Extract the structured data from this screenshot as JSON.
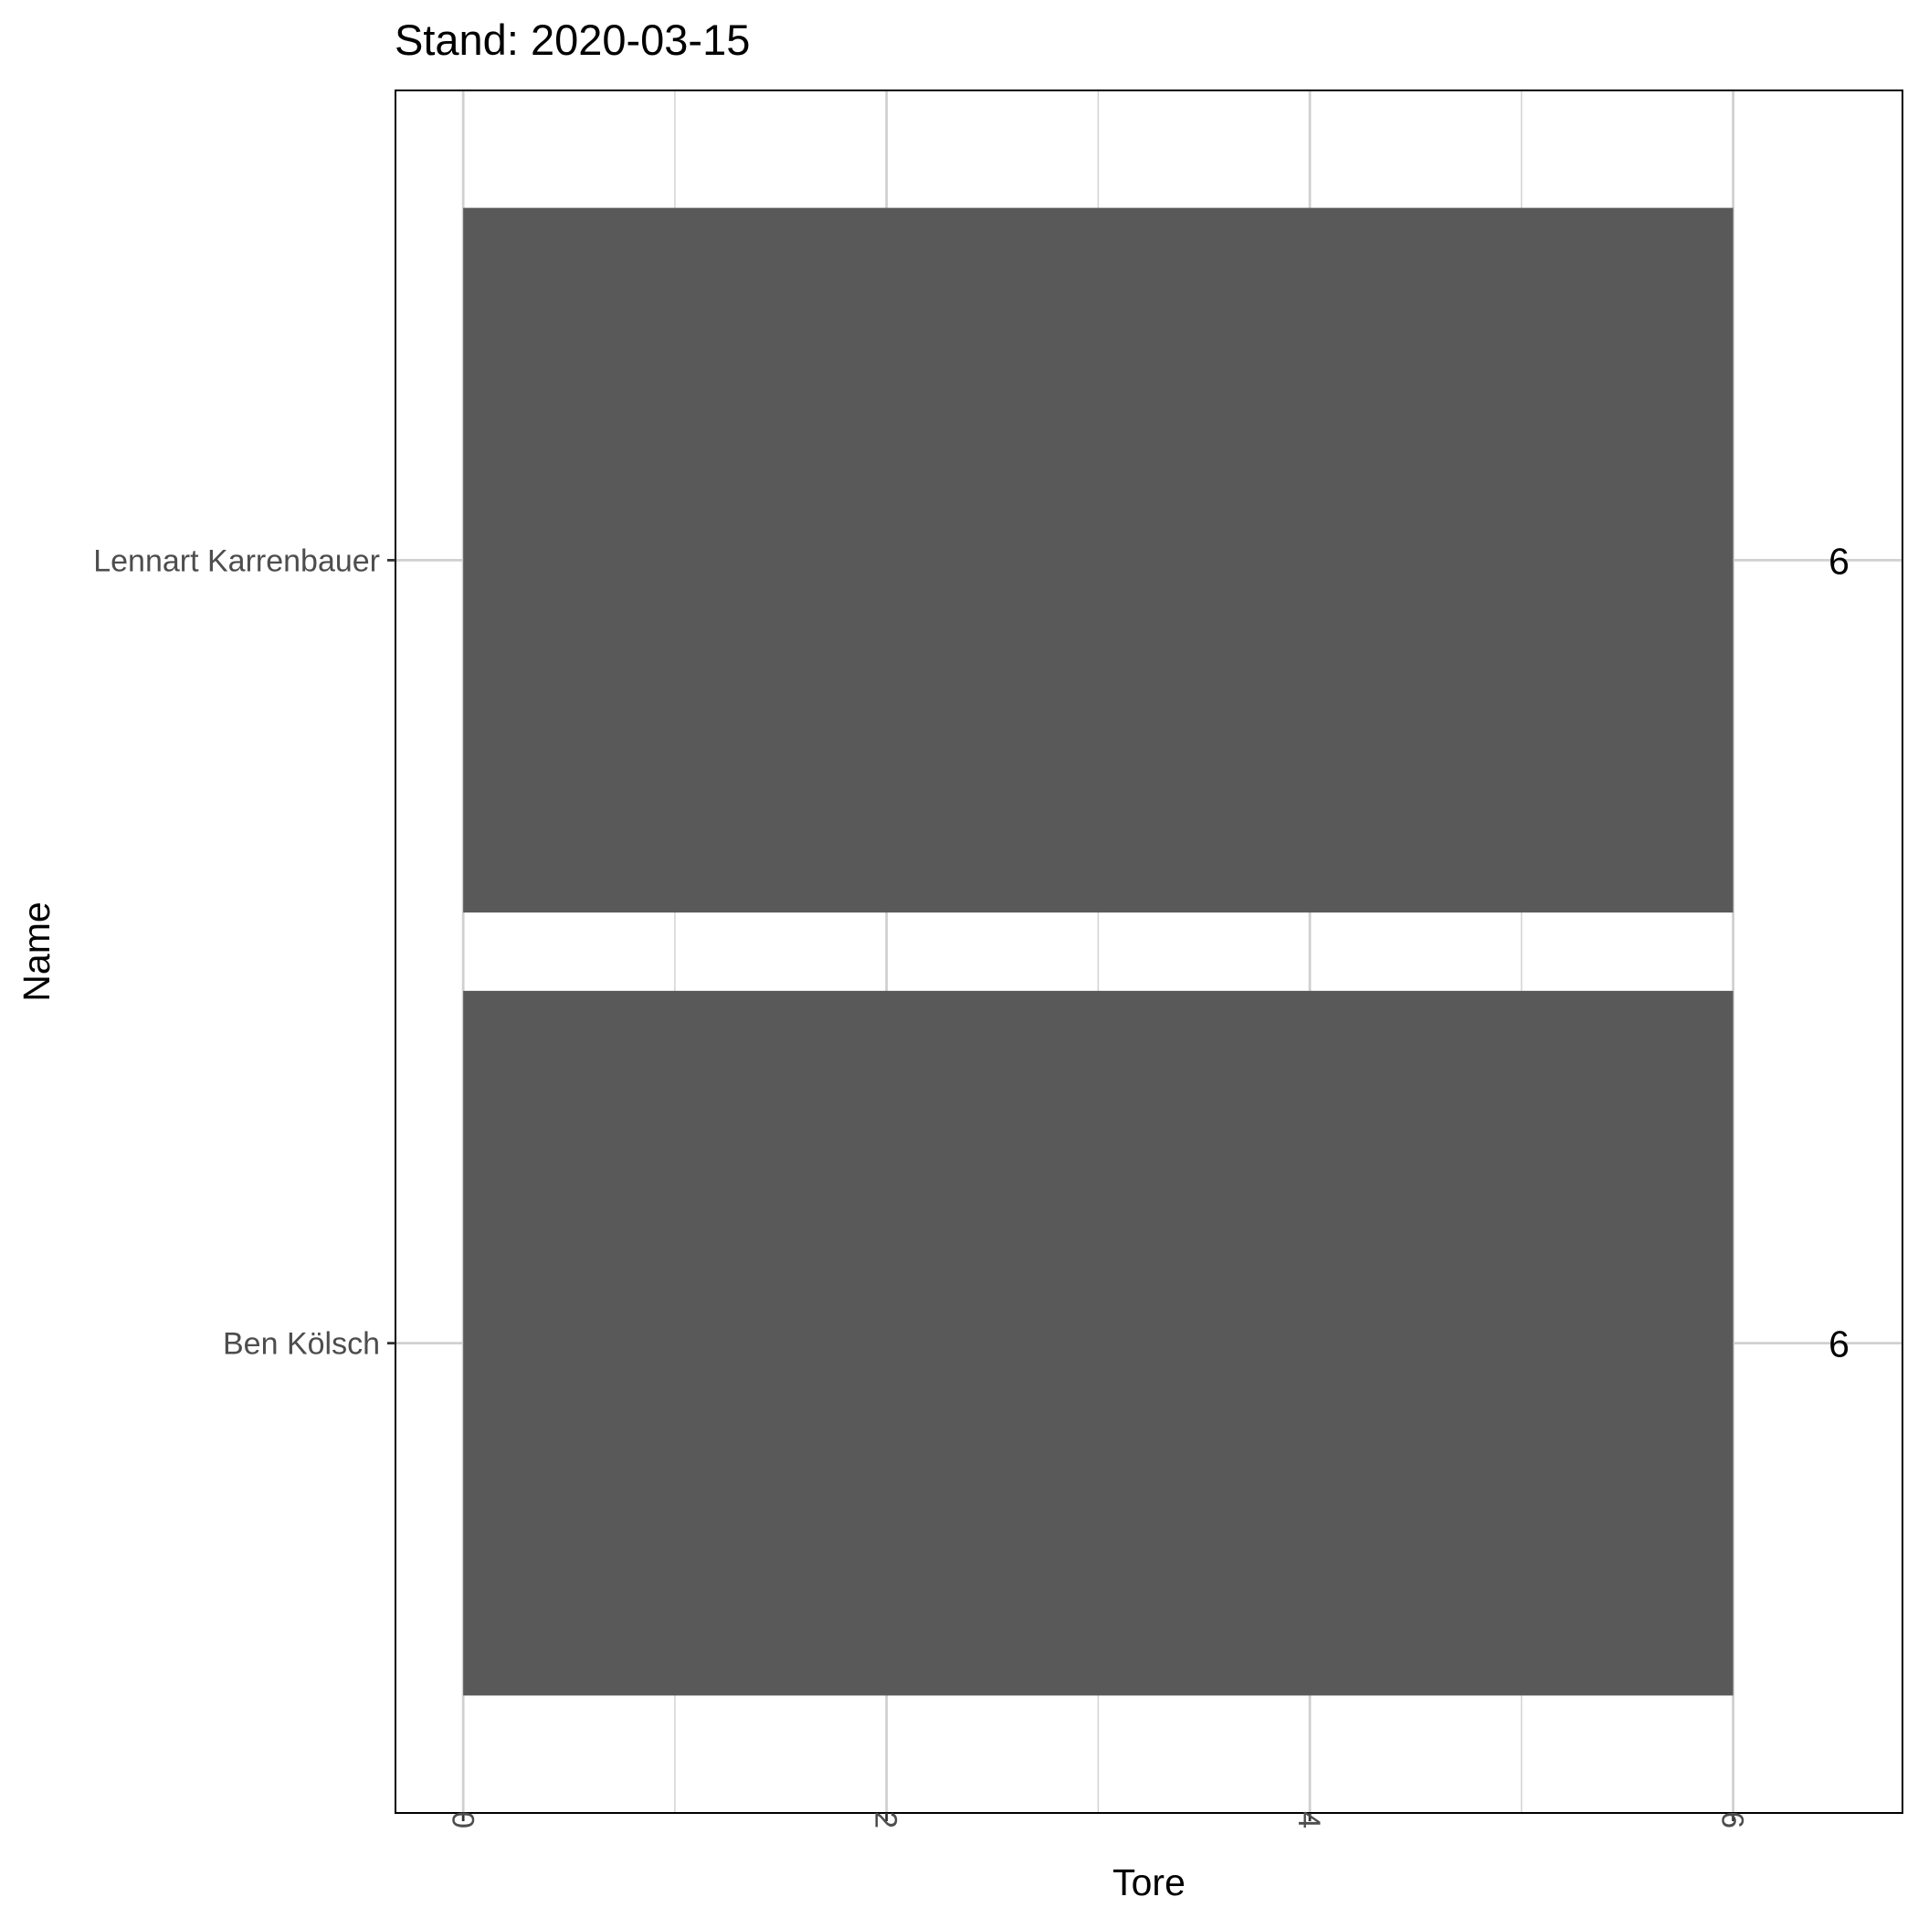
{
  "chart_data": {
    "type": "bar",
    "orientation": "horizontal",
    "title": "Stand: 2020-03-15",
    "xlabel": "Tore",
    "ylabel": "Name",
    "categories": [
      "Lennart Karrenbauer",
      "Ben Kölsch"
    ],
    "values": [
      6,
      6
    ],
    "data_labels": [
      "6",
      "6"
    ],
    "xlim": [
      -0.32,
      6.8
    ],
    "x_ticks": [
      0,
      2,
      4,
      6
    ],
    "x_tick_labels": [
      "0",
      "2",
      "4",
      "6"
    ],
    "x_tick_label_rotation": 90,
    "grid": true,
    "bar_color": "#595959",
    "grid_color": "#d0d0d0",
    "legend": "none"
  }
}
